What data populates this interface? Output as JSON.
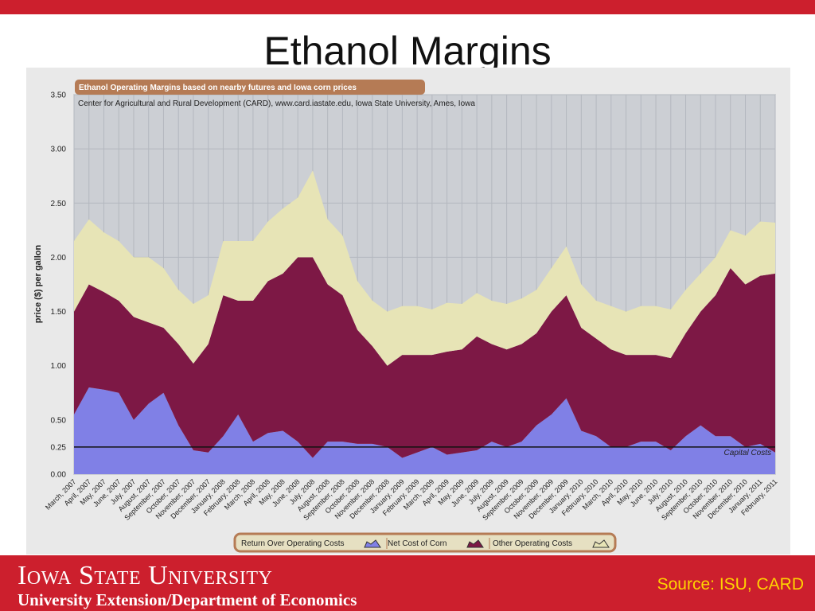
{
  "slide": {
    "title": "Ethanol Margins",
    "university": "Iowa State University",
    "department": "University Extension/Department of Economics",
    "source": "Source: ISU, CARD"
  },
  "colors": {
    "brand_red": "#cc1f2d",
    "source_text": "#ffd400",
    "return_fill": "#8080e6",
    "corn_fill": "#7d1845",
    "other_fill": "#e7e4b6",
    "plot_bg": "#cccfd4"
  },
  "chart_data": {
    "type": "area",
    "stacked": true,
    "title": "Ethanol Operating Margins based on nearby futures and Iowa corn prices",
    "subtitle": "Center for Agricultural and Rural Development (CARD), www.card.iastate.edu, Iowa State University, Ames, Iowa",
    "ylabel": "price ($) per gallon",
    "ylim": [
      0,
      3.5
    ],
    "yticks": [
      "0.00",
      "0.25",
      "0.50",
      "1.00",
      "1.50",
      "2.00",
      "2.50",
      "3.00",
      "3.50"
    ],
    "grid": true,
    "legend_position": "bottom",
    "categories": [
      "March, 2007",
      "April, 2007",
      "May, 2007",
      "June, 2007",
      "July, 2007",
      "August, 2007",
      "September, 2007",
      "October, 2007",
      "November, 2007",
      "December, 2007",
      "January, 2008",
      "February, 2008",
      "March, 2008",
      "April, 2008",
      "May, 2008",
      "June, 2008",
      "July, 2008",
      "August, 2008",
      "September, 2008",
      "October, 2008",
      "November, 2008",
      "December, 2008",
      "January, 2009",
      "February, 2009",
      "March, 2009",
      "April, 2009",
      "May, 2009",
      "June, 2009",
      "July, 2009",
      "August, 2009",
      "September, 2009",
      "October, 2009",
      "November, 2009",
      "December, 2009",
      "January, 2010",
      "February, 2010",
      "March, 2010",
      "April, 2010",
      "May, 2010",
      "June, 2010",
      "July, 2010",
      "August, 2010",
      "September, 2010",
      "October, 2010",
      "November, 2010",
      "December, 2010",
      "January, 2011",
      "February, 2011"
    ],
    "series": [
      {
        "name": "Return Over Operating Costs",
        "values": [
          0.55,
          0.8,
          0.78,
          0.75,
          0.5,
          0.65,
          0.75,
          0.45,
          0.22,
          0.2,
          0.35,
          0.55,
          0.3,
          0.38,
          0.4,
          0.3,
          0.15,
          0.3,
          0.3,
          0.28,
          0.28,
          0.25,
          0.15,
          0.2,
          0.25,
          0.18,
          0.2,
          0.22,
          0.3,
          0.25,
          0.3,
          0.45,
          0.55,
          0.7,
          0.4,
          0.35,
          0.25,
          0.25,
          0.3,
          0.3,
          0.22,
          0.35,
          0.45,
          0.35,
          0.35,
          0.25,
          0.28,
          0.2
        ]
      },
      {
        "name": "Net Cost of Corn",
        "values": [
          0.95,
          0.95,
          0.9,
          0.85,
          0.95,
          0.75,
          0.6,
          0.75,
          0.8,
          1.0,
          1.3,
          1.05,
          1.3,
          1.4,
          1.45,
          1.7,
          1.85,
          1.45,
          1.35,
          1.05,
          0.9,
          0.75,
          0.95,
          0.9,
          0.85,
          0.95,
          0.95,
          1.05,
          0.9,
          0.9,
          0.9,
          0.85,
          0.95,
          0.95,
          0.95,
          0.9,
          0.9,
          0.85,
          0.8,
          0.8,
          0.85,
          0.95,
          1.05,
          1.3,
          1.55,
          1.5,
          1.55,
          1.65
        ]
      },
      {
        "name": "Other Operating Costs",
        "values": [
          0.65,
          0.6,
          0.55,
          0.55,
          0.55,
          0.6,
          0.55,
          0.5,
          0.55,
          0.45,
          0.5,
          0.55,
          0.55,
          0.55,
          0.6,
          0.55,
          0.8,
          0.6,
          0.55,
          0.45,
          0.42,
          0.5,
          0.45,
          0.45,
          0.42,
          0.45,
          0.42,
          0.4,
          0.4,
          0.42,
          0.42,
          0.4,
          0.4,
          0.45,
          0.4,
          0.35,
          0.4,
          0.4,
          0.45,
          0.45,
          0.45,
          0.4,
          0.35,
          0.35,
          0.35,
          0.45,
          0.5,
          0.47
        ]
      }
    ],
    "reference_line": {
      "label": "Capital Costs",
      "value": 0.25
    }
  }
}
